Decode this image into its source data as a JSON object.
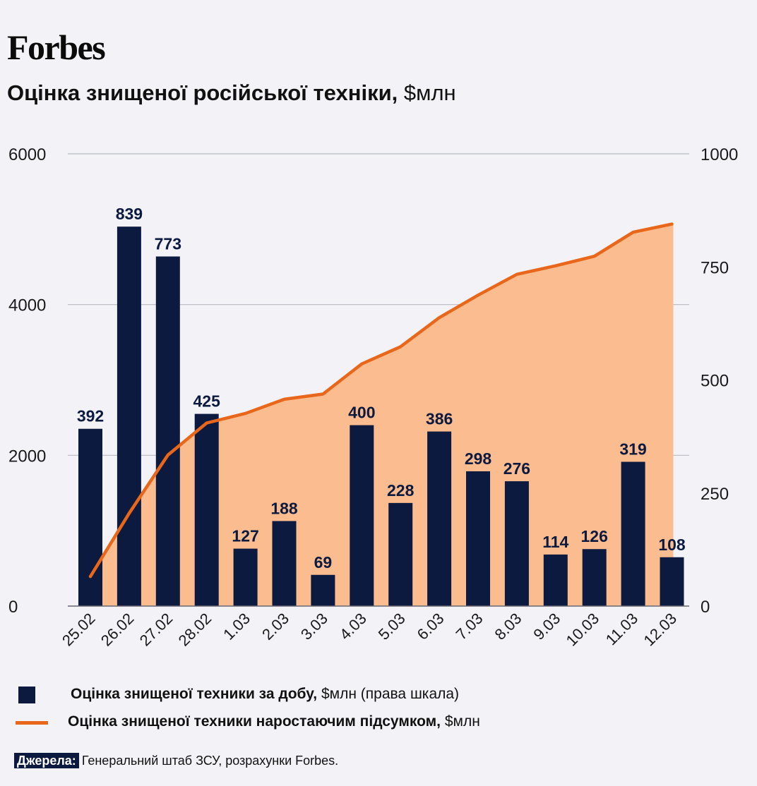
{
  "brand": "Forbes",
  "title": {
    "main": "Оцінка знищеної російської техніки,",
    "unit": "$млн"
  },
  "chart_data": {
    "type": "bar",
    "categories": [
      "25.02",
      "26.02",
      "27.02",
      "28.02",
      "1.03",
      "2.03",
      "3.03",
      "4.03",
      "5.03",
      "6.03",
      "7.03",
      "8.03",
      "9.03",
      "10.03",
      "11.03",
      "12.03"
    ],
    "series": [
      {
        "name": "Оцінка знищеної техники за добу, $млн (права шкала)",
        "type": "bar",
        "axis": "right",
        "color": "#0d1a3f",
        "values": [
          392,
          839,
          773,
          425,
          127,
          188,
          69,
          400,
          228,
          386,
          298,
          276,
          114,
          126,
          319,
          108
        ]
      },
      {
        "name": "Оцінка знищеної техники наростаючим підсумком, $млн",
        "type": "area",
        "axis": "left",
        "color": "#e8671a",
        "fill": "#fbbd8f",
        "values": [
          392,
          1231,
          2004,
          2429,
          2556,
          2744,
          2813,
          3213,
          3441,
          3827,
          4125,
          4401,
          4515,
          4641,
          4960,
          5068
        ]
      }
    ],
    "left_axis": {
      "range": [
        0,
        6000
      ],
      "ticks": [
        "0",
        "2000",
        "4000",
        "6000"
      ]
    },
    "right_axis": {
      "range": [
        0,
        1000
      ],
      "ticks": [
        "0",
        "250",
        "500",
        "750",
        "1000"
      ]
    },
    "grid": true,
    "legend_position": "bottom"
  },
  "legend": {
    "bar_label_bold": "Оцінка знищеної техники за добу,",
    "bar_label_rest": " $млн (права шкала)",
    "line_label_bold": "Оцінка знищеної техники наростаючим підсумком,",
    "line_label_rest": " $млн"
  },
  "source": {
    "tag": "Джерела:",
    "text": "Генеральний штаб ЗСУ, розрахунки Forbes."
  }
}
